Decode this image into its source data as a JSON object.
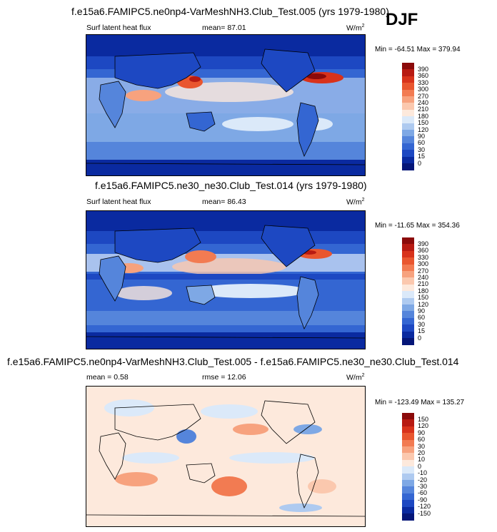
{
  "season": "DJF",
  "panels": [
    {
      "title": "f.e15a6.FAMIPC5.ne0np4-VarMeshNH3.Club_Test.005 (yrs 1979-1980)",
      "left_label": "Surf latent heat flux",
      "center_label": "mean=  87.01",
      "units": "W/m",
      "units_sup": "2",
      "minmax": "Min = -64.51 Max = 379.94",
      "levels": [
        "390",
        "360",
        "330",
        "300",
        "270",
        "240",
        "210",
        "180",
        "150",
        "120",
        "90",
        "60",
        "30",
        "15",
        "0"
      ],
      "colors": [
        "#8b0a0a",
        "#b81a12",
        "#d8321b",
        "#e9562f",
        "#f27b52",
        "#f7a27e",
        "#fbc8ae",
        "#fde9dc",
        "#dbe9f9",
        "#aecaf0",
        "#7ea8e5",
        "#5585db",
        "#3466d2",
        "#1d48c2",
        "#0a2aa0",
        "#051678"
      ]
    },
    {
      "title": "f.e15a6.FAMIPC5.ne30_ne30.Club_Test.014 (yrs 1979-1980)",
      "left_label": "Surf latent heat flux",
      "center_label": "mean=  86.43",
      "units": "W/m",
      "units_sup": "2",
      "minmax": "Min = -11.65 Max = 354.36",
      "levels": [
        "390",
        "360",
        "330",
        "300",
        "270",
        "240",
        "210",
        "180",
        "150",
        "120",
        "90",
        "60",
        "30",
        "15",
        "0"
      ],
      "colors": [
        "#8b0a0a",
        "#b81a12",
        "#d8321b",
        "#e9562f",
        "#f27b52",
        "#f7a27e",
        "#fbc8ae",
        "#fde9dc",
        "#dbe9f9",
        "#aecaf0",
        "#7ea8e5",
        "#5585db",
        "#3466d2",
        "#1d48c2",
        "#0a2aa0",
        "#051678"
      ]
    },
    {
      "title": "f.e15a6.FAMIPC5.ne0np4-VarMeshNH3.Club_Test.005 - f.e15a6.FAMIPC5.ne30_ne30.Club_Test.014",
      "left_label": "mean =  0.58",
      "center_label": "rmse =  12.06",
      "units": "W/m",
      "units_sup": "2",
      "minmax": "Min = -123.49 Max = 135.27",
      "levels": [
        "150",
        "120",
        "90",
        "60",
        "30",
        "20",
        "10",
        "0",
        "-10",
        "-20",
        "-30",
        "-60",
        "-90",
        "-120",
        "-150"
      ],
      "colors": [
        "#8b0a0a",
        "#b81a12",
        "#d8321b",
        "#e9562f",
        "#f27b52",
        "#f7a27e",
        "#fbc8ae",
        "#fde9dc",
        "#dbe9f9",
        "#aecaf0",
        "#7ea8e5",
        "#5585db",
        "#3466d2",
        "#1d48c2",
        "#0a2aa0",
        "#051678"
      ]
    }
  ]
}
